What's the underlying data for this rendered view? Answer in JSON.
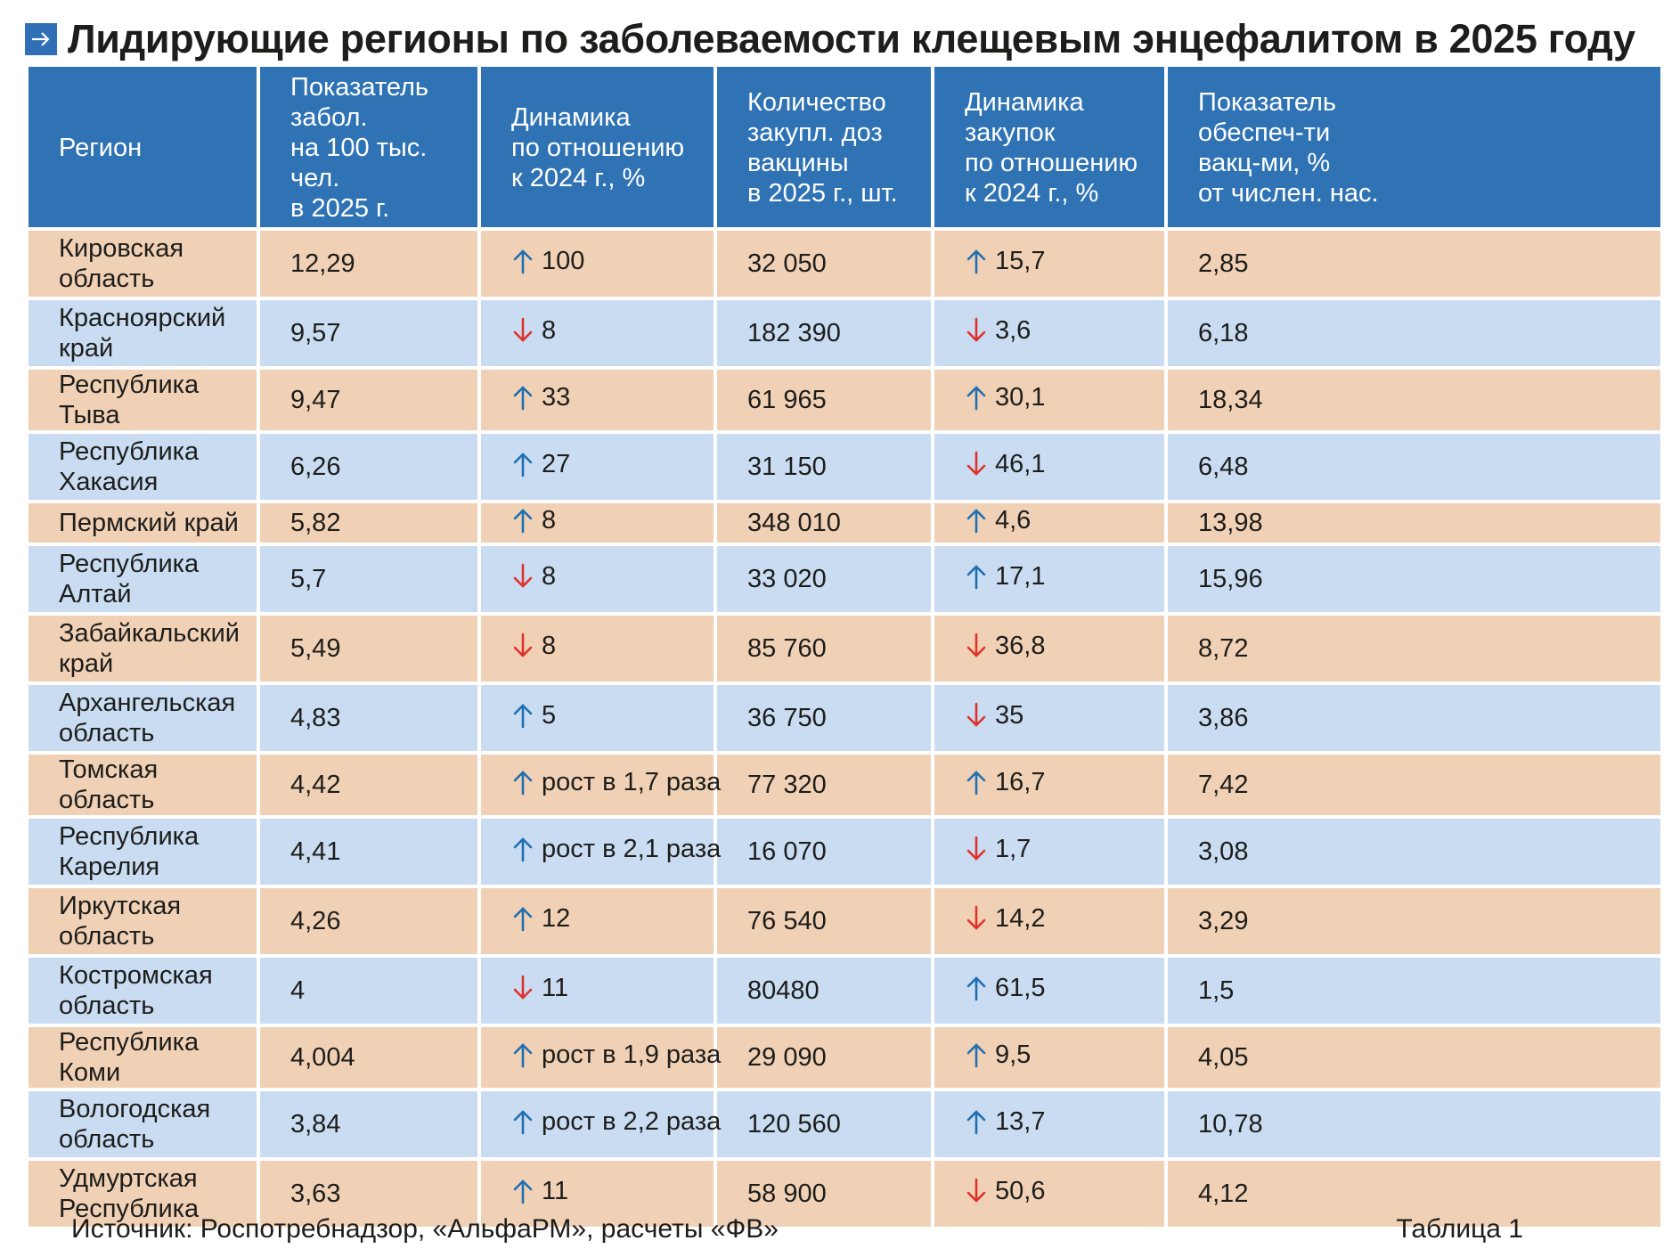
{
  "title": "Лидирующие регионы по заболеваемости клещевым энцефалитом в 2025 году",
  "colors": {
    "header_bg": "#2f73b5",
    "row_peach": "#f1d1b5",
    "row_blue": "#c9dcf2",
    "arrow_up": "#1f6fb2",
    "arrow_down": "#e0322b"
  },
  "table": {
    "headers": [
      "Регион",
      "Показатель\nзабол.\nна 100 тыс. чел.\nв 2025 г.",
      "Динамика\nпо отношению\nк 2024 г., %",
      "Количество\nзакупл. доз\nвакцины\nв 2025 г., шт.",
      "Динамика\nзакупок\nпо отношению\nк 2024 г., %",
      "Показатель\nобеспеч-ти\nвакц-ми, %\nот числен. нас."
    ],
    "rows": [
      {
        "region": "Кировская\nобласть",
        "rate": "12,29",
        "dyn_dir": "up",
        "dyn": "100",
        "doses": "32 050",
        "pdyn_dir": "up",
        "pdyn": "15,7",
        "cov": "2,85"
      },
      {
        "region": "Красноярский\nкрай",
        "rate": "9,57",
        "dyn_dir": "down",
        "dyn": "8",
        "doses": "182 390",
        "pdyn_dir": "down",
        "pdyn": "3,6",
        "cov": "6,18"
      },
      {
        "region": "Республика Тыва",
        "rate": "9,47",
        "dyn_dir": "up",
        "dyn": "33",
        "doses": "61 965",
        "pdyn_dir": "up",
        "pdyn": "30,1",
        "cov": "18,34"
      },
      {
        "region": "Республика\nХакасия",
        "rate": "6,26",
        "dyn_dir": "up",
        "dyn": "27",
        "doses": "31 150",
        "pdyn_dir": "down",
        "pdyn": "46,1",
        "cov": "6,48"
      },
      {
        "region": "Пермский край",
        "rate": "5,82",
        "dyn_dir": "up",
        "dyn": "8",
        "doses": "348 010",
        "pdyn_dir": "up",
        "pdyn": "4,6",
        "cov": "13,98"
      },
      {
        "region": "Республика\nАлтай",
        "rate": "5,7",
        "dyn_dir": "down",
        "dyn": "8",
        "doses": "33 020",
        "pdyn_dir": "up",
        "pdyn": "17,1",
        "cov": "15,96"
      },
      {
        "region": "Забайкальский\nкрай",
        "rate": "5,49",
        "dyn_dir": "down",
        "dyn": "8",
        "doses": "85 760",
        "pdyn_dir": "down",
        "pdyn": "36,8",
        "cov": "8,72"
      },
      {
        "region": "Архангельская\nобласть",
        "rate": "4,83",
        "dyn_dir": "up",
        "dyn": "5",
        "doses": "36 750",
        "pdyn_dir": "down",
        "pdyn": "35",
        "cov": "3,86"
      },
      {
        "region": "Томская область",
        "rate": "4,42",
        "dyn_dir": "up",
        "dyn": "рост в 1,7 раза",
        "doses": "77 320",
        "pdyn_dir": "up",
        "pdyn": "16,7",
        "cov": "7,42"
      },
      {
        "region": "Республика\nКарелия",
        "rate": "4,41",
        "dyn_dir": "up",
        "dyn": "рост в 2,1 раза",
        "doses": "16 070",
        "pdyn_dir": "down",
        "pdyn": "1,7",
        "cov": "3,08"
      },
      {
        "region": "Иркутская\nобласть",
        "rate": "4,26",
        "dyn_dir": "up",
        "dyn": "12",
        "doses": "76 540",
        "pdyn_dir": "down",
        "pdyn": "14,2",
        "cov": "3,29"
      },
      {
        "region": "Костромская\nобласть",
        "rate": "4",
        "dyn_dir": "down",
        "dyn": "11",
        "doses": "80480",
        "pdyn_dir": "up",
        "pdyn": "61,5",
        "cov": "1,5"
      },
      {
        "region": "Республика Коми",
        "rate": "4,004",
        "dyn_dir": "up",
        "dyn": "рост в 1,9 раза",
        "doses": "29 090",
        "pdyn_dir": "up",
        "pdyn": "9,5",
        "cov": "4,05"
      },
      {
        "region": "Вологодская\nобласть",
        "rate": "3,84",
        "dyn_dir": "up",
        "dyn": "рост в 2,2 раза",
        "doses": "120 560",
        "pdyn_dir": "up",
        "pdyn": "13,7",
        "cov": "10,78"
      },
      {
        "region": "Удмуртская\nРеспублика",
        "rate": "3,63",
        "dyn_dir": "up",
        "dyn": "11",
        "doses": "58 900",
        "pdyn_dir": "down",
        "pdyn": "50,6",
        "cov": "4,12"
      }
    ]
  },
  "footer": {
    "source": "Источник: Роспотребнадзор, «АльфаРМ», расчеты «ФВ»",
    "table_label": "Таблица 1"
  }
}
